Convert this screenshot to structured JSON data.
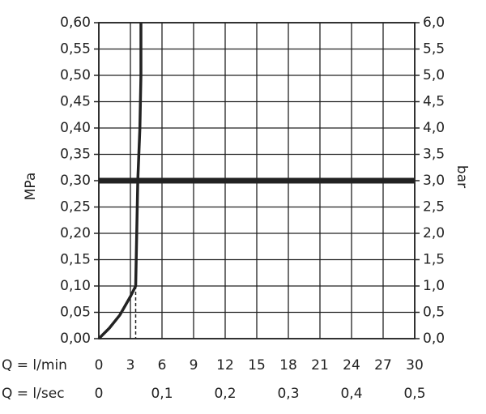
{
  "chart_data": {
    "type": "line",
    "x_label": "Q = l/min",
    "x2_label": "Q = l/sec",
    "y_label": "MPa",
    "y2_label": "bar",
    "x": [
      0,
      1,
      2,
      3,
      3.5,
      3.6,
      3.7,
      3.9,
      4.0,
      4.0
    ],
    "values": [
      0,
      0.02,
      0.045,
      0.08,
      0.1,
      0.2,
      0.3,
      0.4,
      0.5,
      0.6
    ],
    "color": "#222222",
    "hline": 0.3,
    "dashed_marker": {
      "x": 3.5,
      "y": 0.1
    },
    "xlim": [
      0,
      30
    ],
    "xticks": [
      0,
      3,
      6,
      9,
      12,
      15,
      18,
      21,
      24,
      27,
      30
    ],
    "x2lim": [
      0,
      0.5
    ],
    "x2ticks": [
      0,
      {
        "value": 0.1,
        "label": "0,1"
      },
      {
        "value": 0.2,
        "label": "0,2"
      },
      {
        "value": 0.3,
        "label": "0,3"
      },
      {
        "value": 0.4,
        "label": "0,4"
      },
      {
        "value": 0.5,
        "label": "0,5"
      }
    ],
    "ylim": [
      0,
      0.6
    ],
    "yticks": [
      {
        "value": 0,
        "label": "0,00"
      },
      {
        "value": 0.05,
        "label": "0,05"
      },
      {
        "value": 0.1,
        "label": "0,10"
      },
      {
        "value": 0.15,
        "label": "0,15"
      },
      {
        "value": 0.2,
        "label": "0,20"
      },
      {
        "value": 0.25,
        "label": "0,25"
      },
      {
        "value": 0.3,
        "label": "0,30"
      },
      {
        "value": 0.35,
        "label": "0,35"
      },
      {
        "value": 0.4,
        "label": "0,40"
      },
      {
        "value": 0.45,
        "label": "0,45"
      },
      {
        "value": 0.5,
        "label": "0,50"
      },
      {
        "value": 0.55,
        "label": "0,55"
      },
      {
        "value": 0.6,
        "label": "0,60"
      }
    ],
    "y2lim": [
      0,
      6
    ],
    "y2ticks": [
      {
        "value": 0,
        "label": "0,0"
      },
      {
        "value": 0.5,
        "label": "0,5"
      },
      {
        "value": 1,
        "label": "1,0"
      },
      {
        "value": 1.5,
        "label": "1,5"
      },
      {
        "value": 2,
        "label": "2,0"
      },
      {
        "value": 2.5,
        "label": "2,5"
      },
      {
        "value": 3,
        "label": "3,0"
      },
      {
        "value": 3.5,
        "label": "3,5"
      },
      {
        "value": 4,
        "label": "4,0"
      },
      {
        "value": 4.5,
        "label": "4,5"
      },
      {
        "value": 5,
        "label": "5,0"
      },
      {
        "value": 5.5,
        "label": "5,5"
      },
      {
        "value": 6,
        "label": "6,0"
      }
    ],
    "grid": true
  }
}
